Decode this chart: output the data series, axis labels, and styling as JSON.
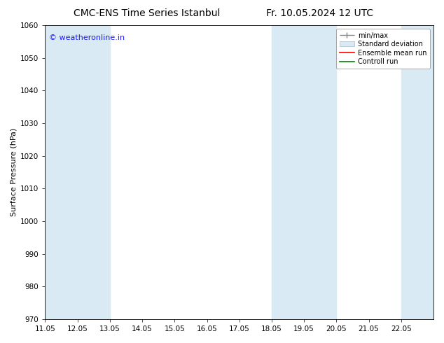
{
  "title_left": "CMC-ENS Time Series Istanbul",
  "title_right": "Fr. 10.05.2024 12 UTC",
  "ylabel": "Surface Pressure (hPa)",
  "xlim": [
    11.0,
    23.0
  ],
  "ylim": [
    970,
    1060
  ],
  "yticks": [
    970,
    980,
    990,
    1000,
    1010,
    1020,
    1030,
    1040,
    1050,
    1060
  ],
  "xtick_labels": [
    "11.05",
    "12.05",
    "13.05",
    "14.05",
    "15.05",
    "16.05",
    "17.05",
    "18.05",
    "19.05",
    "20.05",
    "21.05",
    "22.05"
  ],
  "xtick_positions": [
    11.0,
    12.0,
    13.0,
    14.0,
    15.0,
    16.0,
    17.0,
    18.0,
    19.0,
    20.0,
    21.0,
    22.0
  ],
  "shaded_bands": [
    {
      "x_start": 11.0,
      "x_end": 11.5
    },
    {
      "x_start": 11.5,
      "x_end": 13.0
    },
    {
      "x_start": 18.0,
      "x_end": 18.5
    },
    {
      "x_start": 18.5,
      "x_end": 19.5
    },
    {
      "x_start": 19.5,
      "x_end": 20.0
    },
    {
      "x_start": 22.0,
      "x_end": 22.5
    },
    {
      "x_start": 22.5,
      "x_end": 23.0
    }
  ],
  "band_color": "#daeaf5",
  "watermark_text": "© weatheronline.in",
  "watermark_color": "#1a1aff",
  "watermark_fontsize": 8,
  "bg_color": "#ffffff",
  "plot_bg_color": "#ffffff",
  "title_fontsize": 10,
  "tick_fontsize": 7.5,
  "ylabel_fontsize": 8
}
